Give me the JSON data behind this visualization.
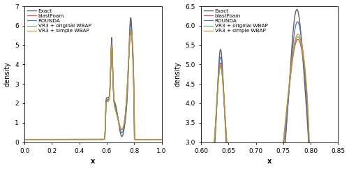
{
  "legend_labels": [
    "Exact",
    "blastFoam",
    "ROUNDA",
    "VR3 + original WBAP",
    "VR3 + simple WBAP"
  ],
  "colors": [
    "#606060",
    "#d05050",
    "#5070c0",
    "#70b070",
    "#c89030"
  ],
  "left_xlim": [
    0.0,
    1.0
  ],
  "left_ylim": [
    0.0,
    7.0
  ],
  "right_xlim": [
    0.6,
    0.85
  ],
  "right_ylim": [
    3.0,
    6.5
  ],
  "xlabel": "x",
  "ylabel": "density",
  "left_xticks": [
    0.0,
    0.2,
    0.4,
    0.6,
    0.8,
    1.0
  ],
  "right_xticks": [
    0.6,
    0.65,
    0.7,
    0.75,
    0.8,
    0.85
  ],
  "base": 0.14,
  "lws": [
    1.0,
    0.9,
    0.9,
    0.9,
    0.9
  ]
}
